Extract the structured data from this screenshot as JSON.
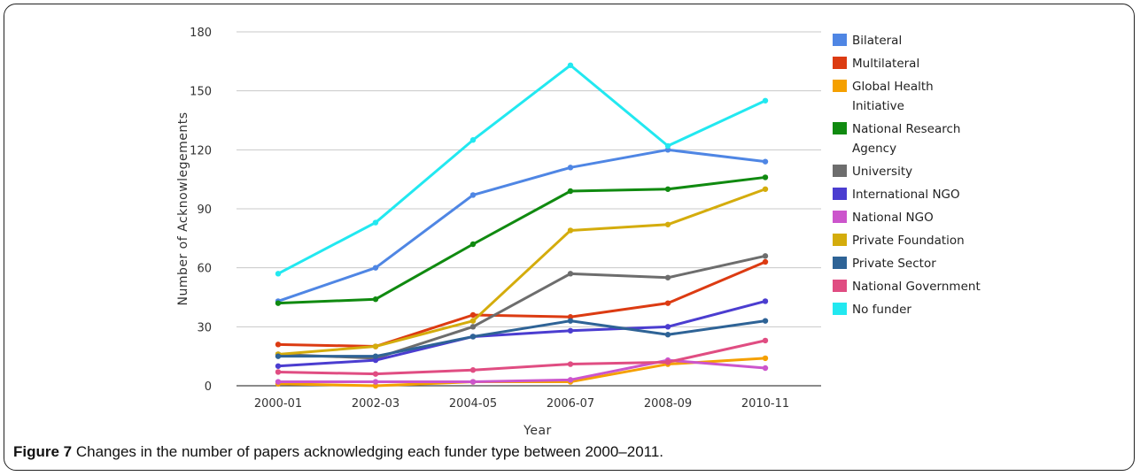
{
  "caption": {
    "label": "Figure 7",
    "text": "Changes in the number of papers acknowledging each funder type between 2000–2011."
  },
  "chart_data": {
    "type": "line",
    "title": "",
    "xlabel": "Year",
    "ylabel": "Number of Acknowlegements",
    "categories": [
      "2000-01",
      "2002-03",
      "2004-05",
      "2006-07",
      "2008-09",
      "2010-11"
    ],
    "ylim": [
      0,
      180
    ],
    "yticks": [
      0,
      30,
      60,
      90,
      120,
      150,
      180
    ],
    "grid": true,
    "legend": "right",
    "series": [
      {
        "name": "Bilateral",
        "color": "#4f86e4",
        "values": [
          43,
          60,
          97,
          111,
          120,
          114
        ]
      },
      {
        "name": "Multilateral",
        "color": "#dc3b12",
        "values": [
          21,
          20,
          36,
          35,
          42,
          63
        ]
      },
      {
        "name": "Global Health Initiative",
        "color": "#f5a000",
        "values": [
          1,
          0,
          2,
          2,
          11,
          14
        ]
      },
      {
        "name": "National Research Agency",
        "color": "#108a10",
        "values": [
          42,
          44,
          72,
          99,
          100,
          106
        ]
      },
      {
        "name": "University",
        "color": "#6d6d6d",
        "values": [
          16,
          14,
          30,
          57,
          55,
          66
        ]
      },
      {
        "name": "International NGO",
        "color": "#4b3dd0",
        "values": [
          10,
          13,
          25,
          28,
          30,
          43
        ]
      },
      {
        "name": "National NGO",
        "color": "#cc55cc",
        "values": [
          2,
          2,
          2,
          3,
          13,
          9
        ]
      },
      {
        "name": "Private Foundation",
        "color": "#d4ac0c",
        "values": [
          16,
          20,
          33,
          79,
          82,
          100
        ]
      },
      {
        "name": "Private Sector",
        "color": "#2e6396",
        "values": [
          15,
          15,
          25,
          33,
          26,
          33
        ]
      },
      {
        "name": "National Government",
        "color": "#e04d82",
        "values": [
          7,
          6,
          8,
          11,
          12,
          23
        ]
      },
      {
        "name": "No funder",
        "color": "#22e8f0",
        "values": [
          57,
          83,
          125,
          163,
          122,
          145
        ]
      }
    ]
  }
}
